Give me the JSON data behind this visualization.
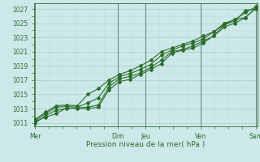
{
  "title": "",
  "xlabel": "Pression niveau de la mer( hPa )",
  "ylabel": "",
  "bg_color": "#cce8e8",
  "grid_major_color": "#aacece",
  "grid_minor_color": "#c0dede",
  "line_color": "#2d6e2d",
  "vline_color": "#3a5a3a",
  "ylim": [
    1010.5,
    1027.8
  ],
  "yticks": [
    1011,
    1013,
    1015,
    1017,
    1019,
    1021,
    1023,
    1025,
    1027
  ],
  "xlabels": [
    "Mer",
    "Dim",
    "Jeu",
    "Ven",
    "Sam"
  ],
  "xtick_positions": [
    0,
    3.0,
    4.0,
    6.0,
    8.0
  ],
  "vlines": [
    0,
    3.0,
    4.0,
    6.0,
    8.0
  ],
  "lines": [
    [
      1011.2,
      1011.8,
      1012.3,
      1013.1,
      1013.0,
      1013.0,
      1013.2,
      1015.6,
      1016.8,
      1017.1,
      1017.8,
      1018.5,
      1019.3,
      1020.8,
      1021.2,
      1021.5,
      1022.2,
      1023.3,
      1024.8,
      1025.3,
      1026.8,
      1027.0
    ],
    [
      1011.0,
      1012.0,
      1012.8,
      1013.0,
      1013.1,
      1013.2,
      1013.5,
      1016.0,
      1017.2,
      1017.5,
      1018.0,
      1018.8,
      1019.8,
      1021.0,
      1021.3,
      1021.8,
      1022.5,
      1023.2,
      1024.5,
      1025.0,
      1025.8,
      1027.1
    ],
    [
      1011.3,
      1012.3,
      1013.2,
      1013.3,
      1013.2,
      1013.8,
      1014.5,
      1016.5,
      1017.5,
      1017.9,
      1018.5,
      1019.2,
      1020.5,
      1021.2,
      1021.8,
      1022.2,
      1022.8,
      1023.8,
      1025.0,
      1025.5,
      1025.8,
      1027.2
    ],
    [
      1011.5,
      1012.5,
      1013.4,
      1013.5,
      1013.4,
      1015.0,
      1015.8,
      1017.0,
      1017.8,
      1018.3,
      1019.0,
      1019.8,
      1021.0,
      1021.5,
      1022.0,
      1022.5,
      1023.2,
      1023.8,
      1024.9,
      1025.5,
      1026.5,
      1027.3
    ]
  ],
  "n_xpoints": 22,
  "xstart": 0,
  "xend": 8.0,
  "marker_size": 2.0,
  "line_width": 0.8,
  "ytick_fontsize": 5.5,
  "xtick_fontsize": 5.5,
  "xlabel_fontsize": 6.5
}
